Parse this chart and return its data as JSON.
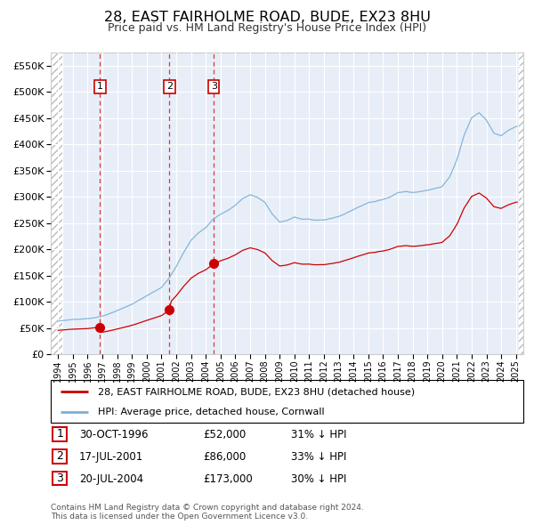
{
  "title": "28, EAST FAIRHOLME ROAD, BUDE, EX23 8HU",
  "subtitle": "Price paid vs. HM Land Registry's House Price Index (HPI)",
  "legend_line1": "28, EAST FAIRHOLME ROAD, BUDE, EX23 8HU (detached house)",
  "legend_line2": "HPI: Average price, detached house, Cornwall",
  "table": [
    {
      "num": 1,
      "date": "30-OCT-1996",
      "price": "£52,000",
      "note": "31% ↓ HPI"
    },
    {
      "num": 2,
      "date": "17-JUL-2001",
      "price": "£86,000",
      "note": "33% ↓ HPI"
    },
    {
      "num": 3,
      "date": "20-JUL-2004",
      "price": "£173,000",
      "note": "30% ↓ HPI"
    }
  ],
  "footer": "Contains HM Land Registry data © Crown copyright and database right 2024.\nThis data is licensed under the Open Government Licence v3.0.",
  "sale_dates_num": [
    1996.83,
    2001.54,
    2004.54
  ],
  "sale_prices": [
    52000,
    86000,
    173000
  ],
  "hpi_color": "#7bafd4",
  "sale_color": "#cc0000",
  "bg_color": "#e8eef8",
  "ylim": [
    0,
    575000
  ],
  "xlim_left": 1993.5,
  "xlim_right": 2025.5
}
